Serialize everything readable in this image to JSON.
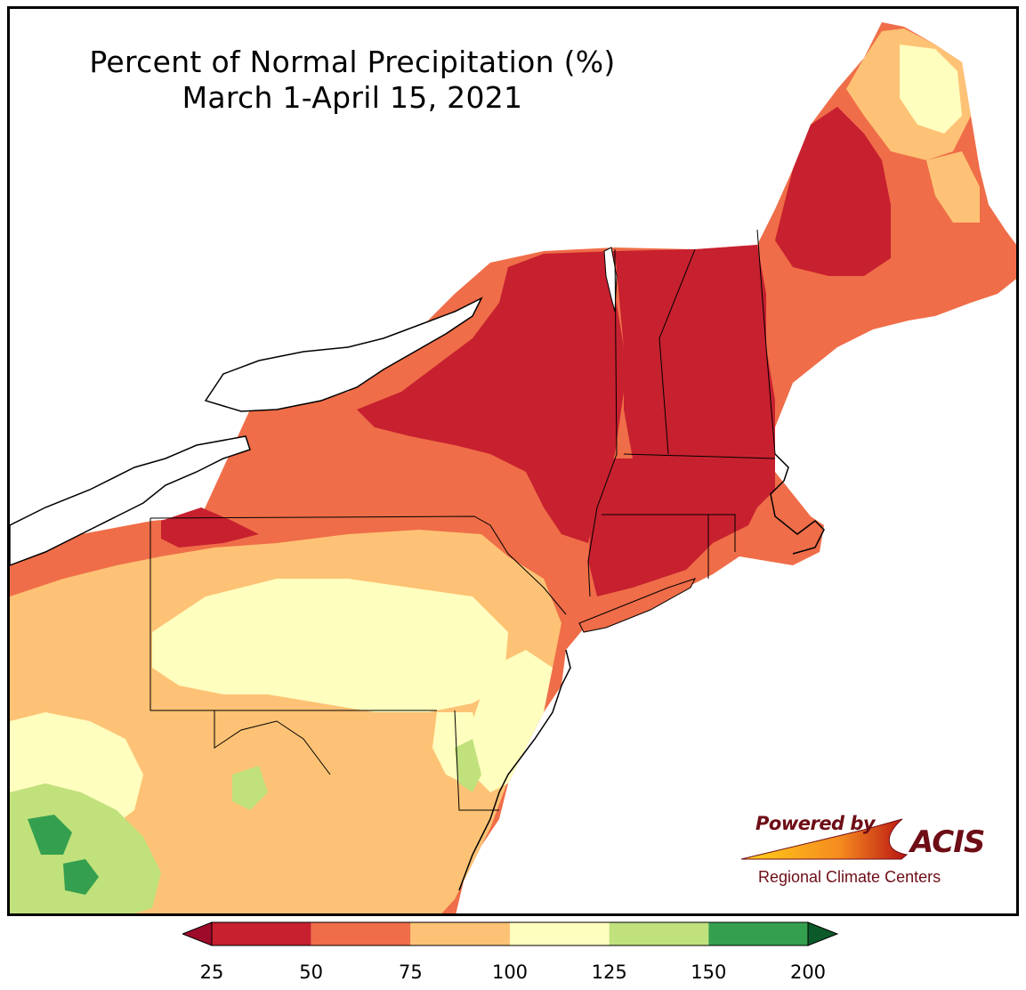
{
  "title": {
    "line1": "Percent of Normal Precipitation (%)",
    "line2": "March 1-April 15, 2021"
  },
  "logo": {
    "powered_by": "Powered by",
    "name": "ACIS",
    "org": "Regional Climate Centers"
  },
  "legend": {
    "colors": [
      "#b2182b",
      "#c7202f",
      "#ef6d48",
      "#fdc275",
      "#fefebe",
      "#c0e17c",
      "#34a04f",
      "#0c5a2a"
    ],
    "ticks": [
      "25",
      "50",
      "75",
      "100",
      "125",
      "150",
      "200"
    ],
    "bins": [
      {
        "from": 25,
        "to": 50,
        "color": "#c7202f"
      },
      {
        "from": 50,
        "to": 75,
        "color": "#ef6d48"
      },
      {
        "from": 75,
        "to": 100,
        "color": "#fdc275"
      },
      {
        "from": 100,
        "to": 125,
        "color": "#fefebe"
      },
      {
        "from": 125,
        "to": 150,
        "color": "#c0e17c"
      },
      {
        "from": 150,
        "to": 200,
        "color": "#34a04f"
      }
    ],
    "under_color": "#9e0b2a",
    "over_color": "#0c5a2a"
  },
  "map": {
    "water_color": "#ffffff",
    "border_color": "#000000"
  }
}
